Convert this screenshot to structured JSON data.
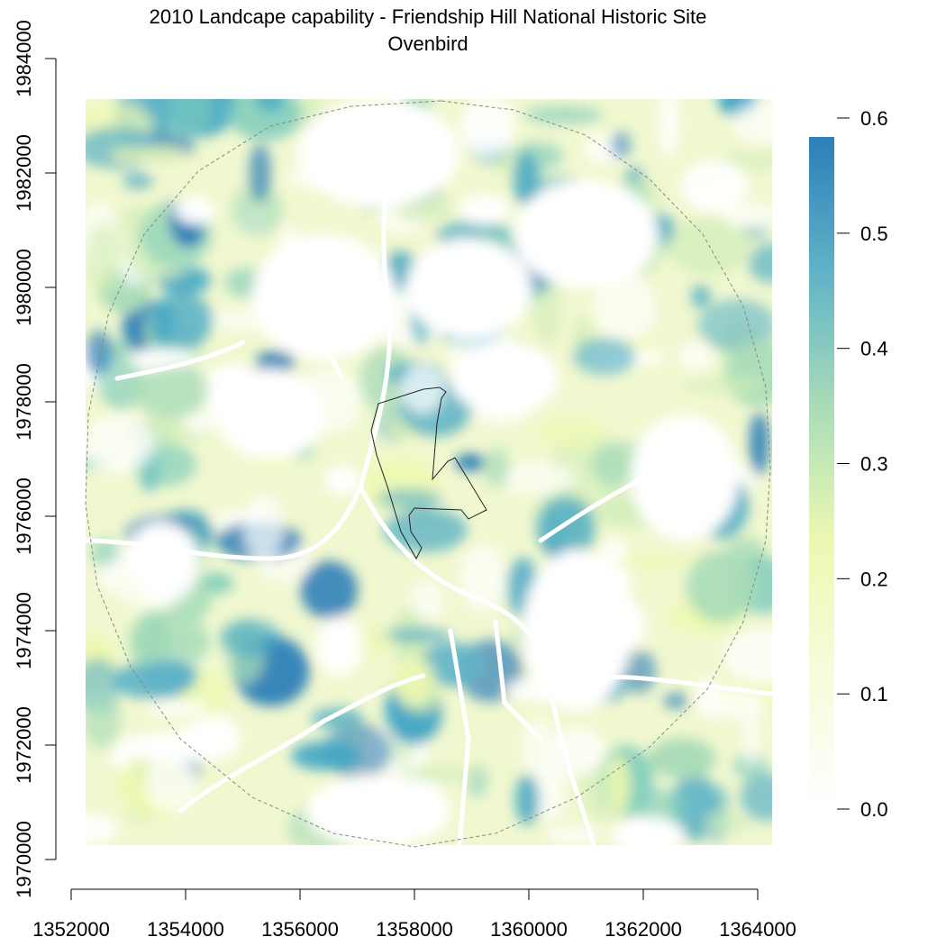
{
  "title": "2010 Landcape capability - Friendship Hill National Historic Site",
  "subtitle": "Ovenbird",
  "chart_data": {
    "type": "heatmap",
    "x_ticks": [
      "1352000",
      "1354000",
      "1356000",
      "1358000",
      "1360000",
      "1362000",
      "1364000"
    ],
    "y_ticks": [
      "1970000",
      "1972000",
      "1974000",
      "1976000",
      "1978000",
      "1980000",
      "1982000",
      "1984000"
    ],
    "x_range": [
      1352000,
      1364000
    ],
    "y_range": [
      1970000,
      1984000
    ],
    "legend_ticks": [
      "0.0",
      "0.1",
      "0.2",
      "0.3",
      "0.4",
      "0.5",
      "0.6"
    ],
    "value_range": [
      0.0,
      0.6
    ],
    "colors": {
      "low": "#ffffff",
      "mid_low": "#edf8b1",
      "mid": "#7fcdbb",
      "high": "#2c7fb8"
    }
  }
}
